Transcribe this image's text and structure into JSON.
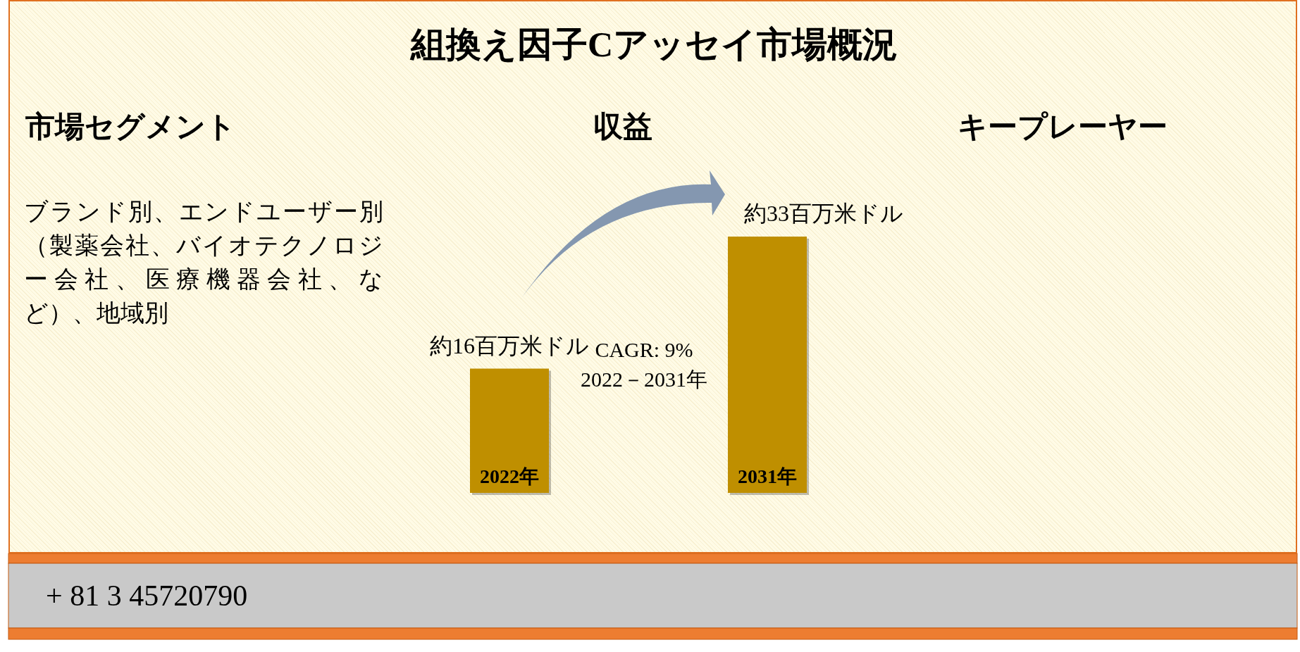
{
  "chart_data": {
    "type": "bar",
    "title": "組換え因子Cアッセイ市場概況",
    "categories": [
      "2022年",
      "2031年"
    ],
    "values": [
      16,
      33
    ],
    "value_labels": [
      "約16百万米ドル",
      "約33百万米ドル"
    ],
    "colors": [
      "#bf8f00",
      "#bf8f00"
    ],
    "annotations": [
      "市場セグメント",
      "収益",
      "キープレーヤー",
      "ブランド別、エンドユーザー別（製薬会社、バイオテクノロジー会社、医療機器会社、など）、地域別",
      "CAGR: 9%\n2022－2031年",
      "+ 81 3 45720790"
    ]
  }
}
